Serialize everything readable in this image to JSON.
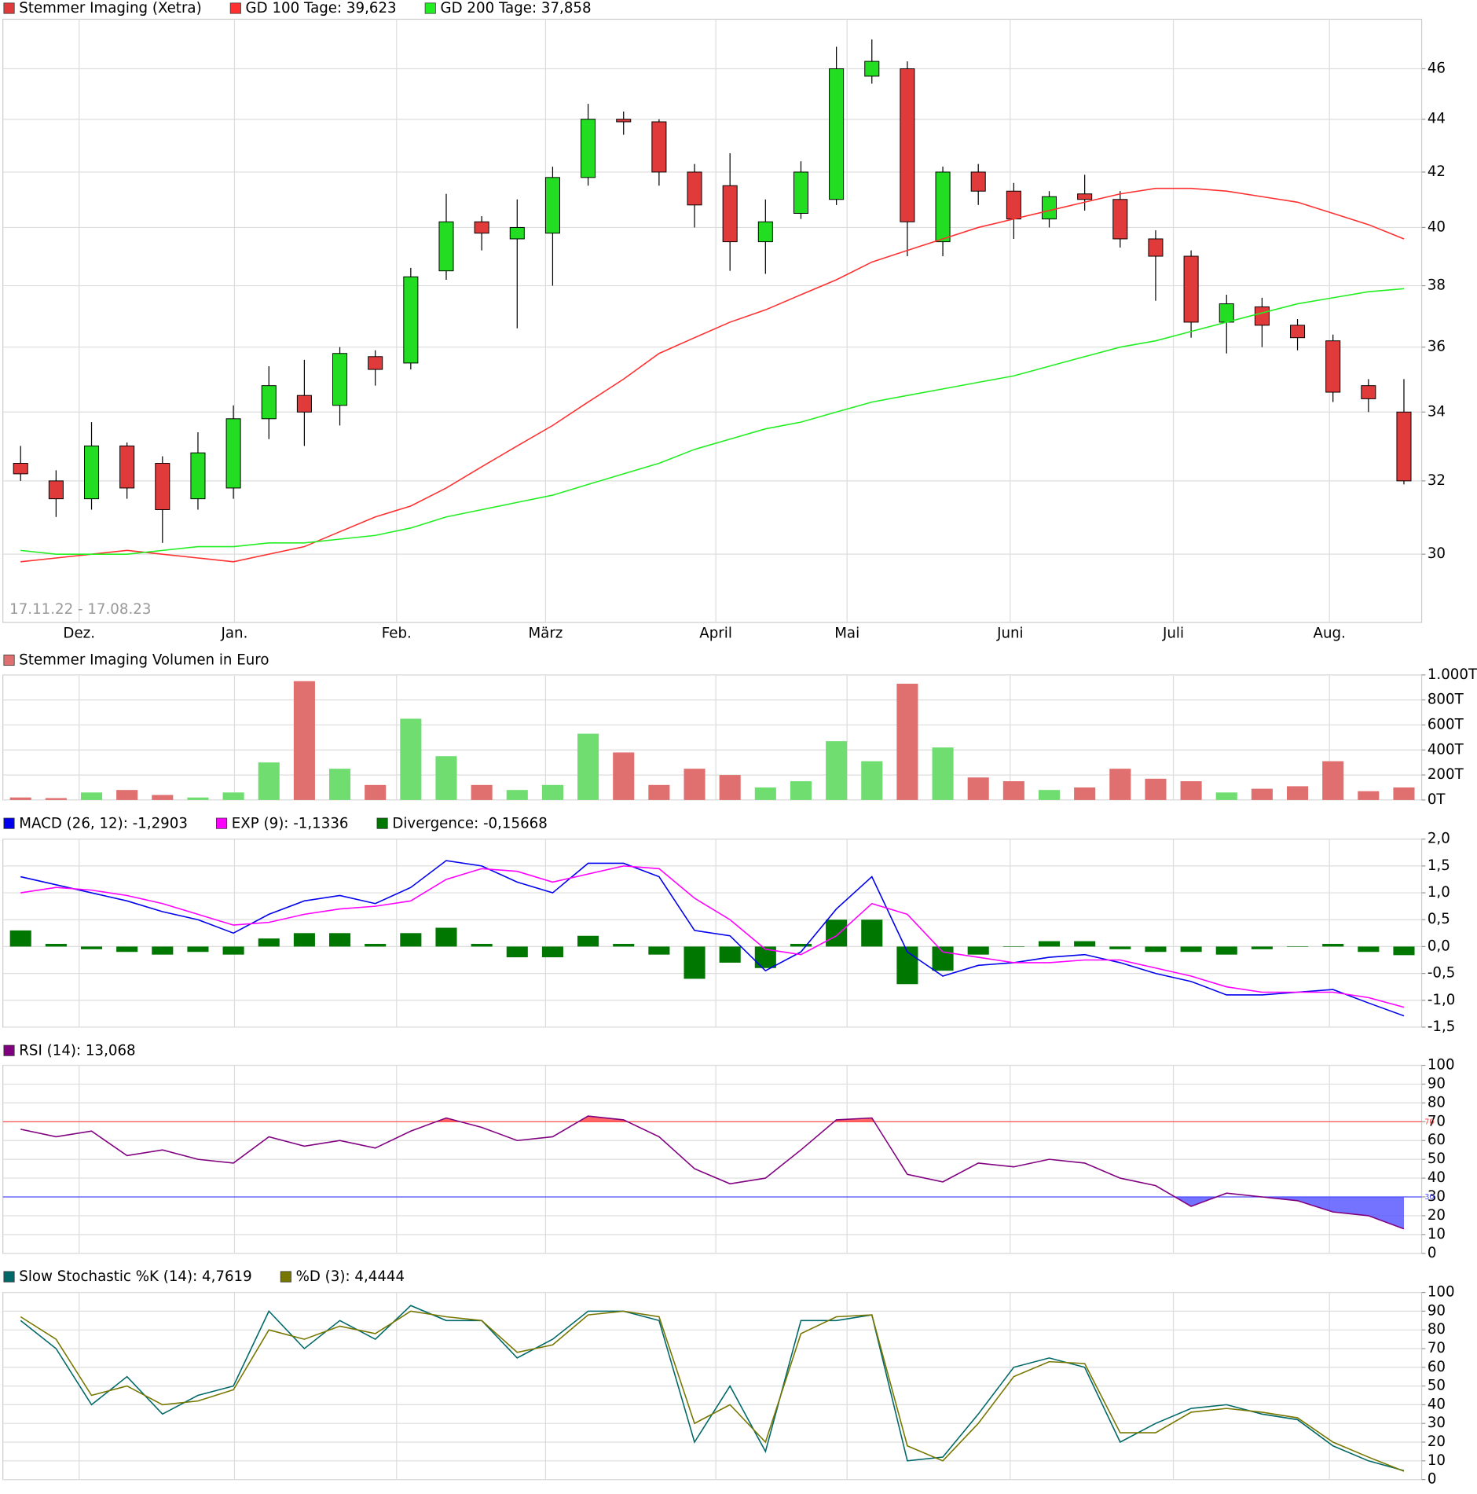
{
  "chart_data": [
    {
      "type": "candlestick",
      "subtitle": "17.11.22 - 17.08.23",
      "log": true,
      "grid": true,
      "xlim": [
        -0.5,
        39.5
      ],
      "xticks": [
        {
          "value": 1.65,
          "label": "Dez."
        },
        {
          "value": 6.03,
          "label": "Jan."
        },
        {
          "value": 10.6,
          "label": "Feb."
        },
        {
          "value": 14.8,
          "label": "März"
        },
        {
          "value": 19.6,
          "label": "April"
        },
        {
          "value": 23.3,
          "label": "Mai"
        },
        {
          "value": 27.9,
          "label": "Juni"
        },
        {
          "value": 32.5,
          "label": "Juli"
        },
        {
          "value": 36.9,
          "label": "Aug."
        }
      ],
      "ylim": [
        28.25,
        48.05
      ],
      "yticks": [
        30,
        32,
        34,
        36,
        38,
        40,
        42,
        44,
        46
      ],
      "series": [
        {
          "name": "Stemmer Imaging (Xetra)",
          "color": "#e03a3a",
          "up_color": "#22dd22",
          "down_color": "#e03a3a",
          "open": [
            32.5,
            32,
            31.5,
            33,
            32.5,
            31.5,
            31.8,
            33.8,
            34.5,
            34.2,
            35.7,
            35.5,
            38.5,
            40.2,
            39.6,
            39.8,
            41.8,
            44,
            43.9,
            42,
            41.5,
            39.5,
            40.5,
            41,
            45.7,
            46,
            39.5,
            42,
            41.3,
            40.3,
            41.2,
            41,
            39.6,
            39,
            36.8,
            37.3,
            36.7,
            36.2,
            34.8,
            34
          ],
          "high": [
            33,
            32.3,
            33.7,
            33.1,
            32.7,
            33.4,
            34.2,
            35.4,
            35.6,
            36,
            35.9,
            38.6,
            41.2,
            40.4,
            41,
            42.2,
            44.6,
            44.3,
            44,
            42.3,
            42.7,
            41,
            42.4,
            46.9,
            47.2,
            46.3,
            42.2,
            42.3,
            41.6,
            41.3,
            41.9,
            41.3,
            39.9,
            39.2,
            37.7,
            37.6,
            36.9,
            36.4,
            35,
            35
          ],
          "low": [
            32,
            31,
            31.2,
            31.5,
            30.3,
            31.2,
            31.5,
            33.2,
            33,
            33.6,
            34.8,
            35.3,
            38.2,
            39.2,
            36.6,
            38,
            41.5,
            43.4,
            41.5,
            40,
            38.5,
            38.4,
            40.3,
            40.8,
            45.4,
            39,
            39,
            40.8,
            39.6,
            40,
            40.6,
            39.3,
            37.5,
            36.3,
            35.8,
            36,
            35.9,
            34.3,
            34,
            31.9
          ],
          "close": [
            32.2,
            31.5,
            33,
            31.8,
            31.2,
            32.8,
            33.8,
            34.8,
            34,
            35.8,
            35.3,
            38.3,
            40.2,
            39.8,
            40,
            41.8,
            44,
            43.9,
            42,
            40.8,
            39.5,
            40.2,
            42,
            46,
            46.3,
            40.2,
            42,
            41.3,
            40.3,
            41.1,
            41,
            39.6,
            39,
            36.8,
            37.4,
            36.7,
            36.3,
            34.6,
            34.4,
            32
          ]
        },
        {
          "name": "GD 100 Tage: 39,623",
          "color": "#ff3030",
          "values": [
            29.8,
            29.9,
            30,
            30.1,
            30,
            29.9,
            29.8,
            30,
            30.2,
            30.6,
            31,
            31.3,
            31.8,
            32.4,
            33,
            33.6,
            34.3,
            35,
            35.8,
            36.3,
            36.8,
            37.2,
            37.7,
            38.2,
            38.8,
            39.2,
            39.6,
            40,
            40.3,
            40.6,
            40.9,
            41.2,
            41.4,
            41.4,
            41.3,
            41.1,
            40.9,
            40.5,
            40.1,
            39.6
          ]
        },
        {
          "name": "GD 200 Tage: 37,858",
          "color": "#22ee22",
          "values": [
            30.1,
            30,
            30,
            30,
            30.1,
            30.2,
            30.2,
            30.3,
            30.3,
            30.4,
            30.5,
            30.7,
            31,
            31.2,
            31.4,
            31.6,
            31.9,
            32.2,
            32.5,
            32.9,
            33.2,
            33.5,
            33.7,
            34,
            34.3,
            34.5,
            34.7,
            34.9,
            35.1,
            35.4,
            35.7,
            36,
            36.2,
            36.5,
            36.8,
            37.1,
            37.4,
            37.6,
            37.8,
            37.9
          ]
        }
      ]
    },
    {
      "type": "bar",
      "title": "Stemmer Imaging Volumen in Euro",
      "color": "#e07070",
      "up_color": "#70dd70",
      "down_color": "#e07070",
      "grid": true,
      "ylim": [
        0,
        1000
      ],
      "yticks": [
        {
          "value": 0,
          "label": "0T"
        },
        {
          "value": 200,
          "label": "200T"
        },
        {
          "value": 400,
          "label": "400T"
        },
        {
          "value": 600,
          "label": "600T"
        },
        {
          "value": 800,
          "label": "800T"
        },
        {
          "value": 1000,
          "label": "1.000T"
        }
      ],
      "values": [
        20,
        15,
        60,
        80,
        40,
        20,
        60,
        300,
        950,
        250,
        120,
        650,
        350,
        120,
        80,
        120,
        530,
        380,
        120,
        250,
        200,
        100,
        150,
        470,
        310,
        930,
        420,
        180,
        150,
        80,
        100,
        250,
        170,
        150,
        60,
        90,
        110,
        310,
        70,
        100
      ]
    },
    {
      "type": "line",
      "grid": true,
      "ylim": [
        -1.5,
        2.0
      ],
      "yticks": [
        {
          "value": -1.5,
          "label": "-1,5"
        },
        {
          "value": -1.0,
          "label": "-1,0"
        },
        {
          "value": -0.5,
          "label": "-0,5"
        },
        {
          "value": 0,
          "label": "0,0"
        },
        {
          "value": 0.5,
          "label": "0,5"
        },
        {
          "value": 1.0,
          "label": "1,0"
        },
        {
          "value": 1.5,
          "label": "1,5"
        },
        {
          "value": 2.0,
          "label": "2,0"
        }
      ],
      "series": [
        {
          "name": "MACD (26, 12): -1,2903",
          "color": "#0000ee",
          "values": [
            1.3,
            1.15,
            1,
            0.85,
            0.65,
            0.5,
            0.25,
            0.6,
            0.85,
            0.95,
            0.8,
            1.1,
            1.6,
            1.5,
            1.2,
            1,
            1.55,
            1.55,
            1.3,
            0.3,
            0.2,
            -0.45,
            -0.1,
            0.7,
            1.3,
            -0.1,
            -0.55,
            -0.35,
            -0.3,
            -0.2,
            -0.15,
            -0.3,
            -0.5,
            -0.65,
            -0.9,
            -0.9,
            -0.85,
            -0.8,
            -1.05,
            -1.29
          ]
        },
        {
          "name": "EXP (9): -1,1336",
          "color": "#ff00ff",
          "values": [
            1,
            1.1,
            1.05,
            0.95,
            0.8,
            0.6,
            0.4,
            0.45,
            0.6,
            0.7,
            0.75,
            0.85,
            1.25,
            1.45,
            1.4,
            1.2,
            1.35,
            1.5,
            1.45,
            0.9,
            0.5,
            -0.05,
            -0.15,
            0.2,
            0.8,
            0.6,
            -0.1,
            -0.2,
            -0.3,
            -0.3,
            -0.25,
            -0.25,
            -0.4,
            -0.55,
            -0.75,
            -0.85,
            -0.85,
            -0.85,
            -0.95,
            -1.13
          ]
        },
        {
          "name": "Divergence: -0,15668",
          "color": "#007700",
          "style": "bar",
          "values": [
            0.3,
            0.05,
            -0.05,
            -0.1,
            -0.15,
            -0.1,
            -0.15,
            0.15,
            0.25,
            0.25,
            0.05,
            0.25,
            0.35,
            0.05,
            -0.2,
            -0.2,
            0.2,
            0.05,
            -0.15,
            -0.6,
            -0.3,
            -0.4,
            0.05,
            0.5,
            0.5,
            -0.7,
            -0.45,
            -0.15,
            0,
            0.1,
            0.1,
            -0.05,
            -0.1,
            -0.1,
            -0.15,
            -0.05,
            0,
            0.05,
            -0.1,
            -0.16
          ]
        }
      ]
    },
    {
      "type": "line",
      "grid": true,
      "ylim": [
        0,
        100
      ],
      "yticks": [
        0,
        10,
        20,
        30,
        40,
        50,
        60,
        70,
        80,
        90,
        100
      ],
      "levels": [
        70,
        30
      ],
      "level_colors": [
        "#ff4040",
        "#5050ff"
      ],
      "series": [
        {
          "name": "RSI (14): 13,068",
          "color": "#800080",
          "values": [
            66,
            62,
            65,
            52,
            55,
            50,
            48,
            62,
            57,
            60,
            56,
            65,
            72,
            67,
            60,
            62,
            73,
            71,
            62,
            45,
            37,
            40,
            55,
            71,
            72,
            42,
            38,
            48,
            46,
            50,
            48,
            40,
            36,
            25,
            32,
            30,
            28,
            22,
            20,
            13
          ]
        }
      ]
    },
    {
      "type": "line",
      "grid": true,
      "ylim": [
        0,
        100
      ],
      "yticks": [
        0,
        10,
        20,
        30,
        40,
        50,
        60,
        70,
        80,
        90,
        100
      ],
      "series": [
        {
          "name": "Slow Stochastic %K (14): 4,7619",
          "color": "#006868",
          "values": [
            85,
            70,
            40,
            55,
            35,
            45,
            50,
            90,
            70,
            85,
            75,
            93,
            85,
            85,
            65,
            75,
            90,
            90,
            85,
            20,
            50,
            15,
            85,
            85,
            88,
            10,
            12,
            35,
            60,
            65,
            60,
            20,
            30,
            38,
            40,
            35,
            32,
            18,
            10,
            4.76
          ]
        },
        {
          "name": "%D (3): 4,4444",
          "color": "#777700",
          "values": [
            87,
            75,
            45,
            50,
            40,
            42,
            48,
            80,
            75,
            82,
            78,
            90,
            87,
            85,
            68,
            72,
            88,
            90,
            87,
            30,
            40,
            20,
            78,
            87,
            88,
            18,
            10,
            30,
            55,
            63,
            62,
            25,
            25,
            36,
            38,
            36,
            33,
            20,
            12,
            4.44
          ]
        }
      ]
    }
  ]
}
